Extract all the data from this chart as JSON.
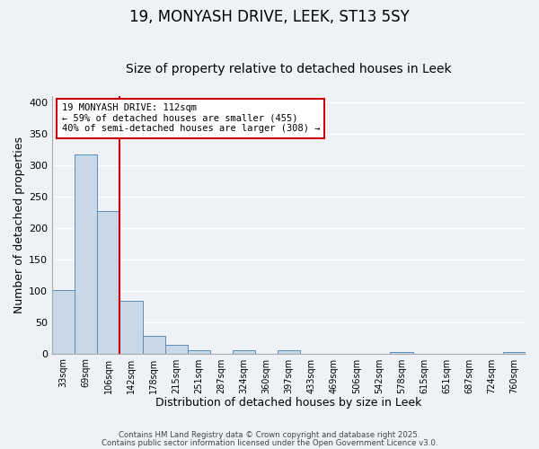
{
  "title": "19, MONYASH DRIVE, LEEK, ST13 5SY",
  "subtitle": "Size of property relative to detached houses in Leek",
  "xlabel": "Distribution of detached houses by size in Leek",
  "ylabel": "Number of detached properties",
  "categories": [
    "33sqm",
    "69sqm",
    "106sqm",
    "142sqm",
    "178sqm",
    "215sqm",
    "251sqm",
    "287sqm",
    "324sqm",
    "360sqm",
    "397sqm",
    "433sqm",
    "469sqm",
    "506sqm",
    "542sqm",
    "578sqm",
    "615sqm",
    "651sqm",
    "687sqm",
    "724sqm",
    "760sqm"
  ],
  "values": [
    101,
    317,
    226,
    83,
    28,
    14,
    5,
    0,
    5,
    0,
    5,
    0,
    0,
    0,
    0,
    2,
    0,
    0,
    0,
    0,
    2
  ],
  "bar_color": "#c8d8e8",
  "bar_edge_color": "#5b8db8",
  "vline_x_index": 2,
  "vline_color": "#cc0000",
  "ylim": [
    0,
    410
  ],
  "yticks": [
    0,
    50,
    100,
    150,
    200,
    250,
    300,
    350,
    400
  ],
  "annotation_text": "19 MONYASH DRIVE: 112sqm\n← 59% of detached houses are smaller (455)\n40% of semi-detached houses are larger (308) →",
  "annotation_box_color": "#ffffff",
  "annotation_box_edgecolor": "#cc0000",
  "footer_line1": "Contains HM Land Registry data © Crown copyright and database right 2025.",
  "footer_line2": "Contains public sector information licensed under the Open Government Licence v3.0.",
  "background_color": "#eef2f7",
  "title_fontsize": 12,
  "subtitle_fontsize": 10,
  "grid_color": "#ffffff"
}
